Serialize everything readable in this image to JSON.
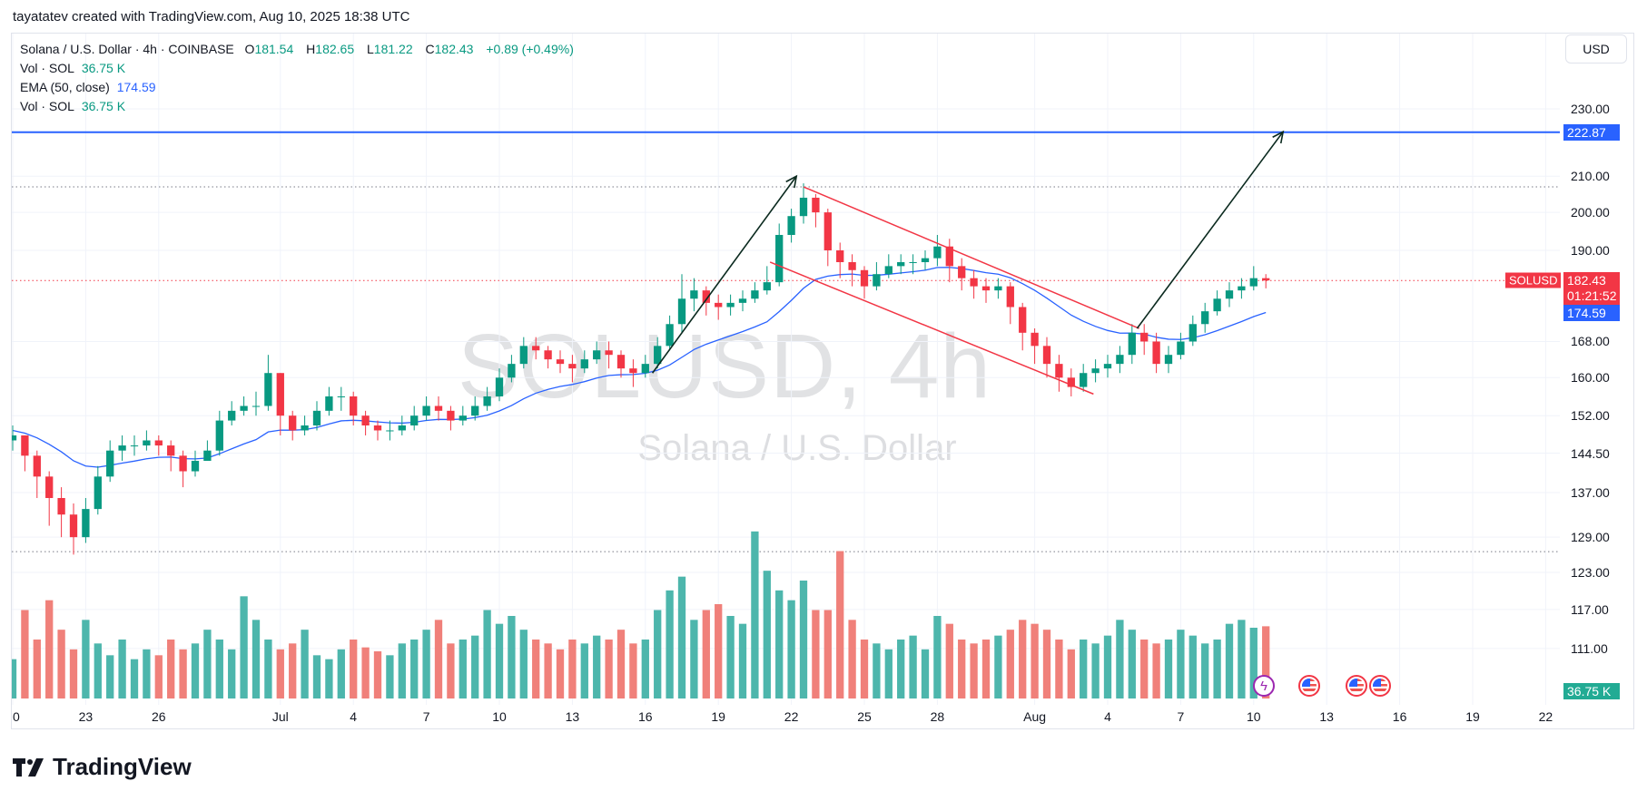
{
  "credit": "tayatatev created with TradingView.com, Aug 10, 2025 18:38 UTC",
  "legend": {
    "symbol": "Solana / U.S. Dollar · 4h · COINBASE",
    "o_label": "O",
    "o": "181.54",
    "h_label": "H",
    "h": "182.65",
    "l_label": "L",
    "l": "181.22",
    "c_label": "C",
    "c": "182.43",
    "change": "+0.89 (+0.49%)",
    "vol1_label": "Vol · SOL",
    "vol1": "36.75 K",
    "ema_label": "EMA (50, close)",
    "ema": "174.59",
    "vol2_label": "Vol · SOL",
    "vol2": "36.75 K"
  },
  "currency_button": "USD",
  "watermark": {
    "symbol": "SOLUSD, 4h",
    "name": "Solana / U.S. Dollar"
  },
  "price_axis": [
    "230.00",
    "210.00",
    "200.00",
    "190.00",
    "168.00",
    "160.00",
    "152.00",
    "144.50",
    "137.00",
    "129.00",
    "123.00",
    "117.00",
    "111.00"
  ],
  "price_tags": {
    "level": "222.87",
    "symbol": "SOLUSD",
    "last": "182.43",
    "countdown": "01:21:52",
    "ema": "174.59",
    "volume": "36.75 K"
  },
  "time_axis": [
    {
      "label": "20",
      "date": "2025-06-20"
    },
    {
      "label": "23",
      "date": "2025-06-23"
    },
    {
      "label": "26",
      "date": "2025-06-26"
    },
    {
      "label": "Jul",
      "date": "2025-07-01"
    },
    {
      "label": "4",
      "date": "2025-07-04"
    },
    {
      "label": "7",
      "date": "2025-07-07"
    },
    {
      "label": "10",
      "date": "2025-07-10"
    },
    {
      "label": "13",
      "date": "2025-07-13"
    },
    {
      "label": "16",
      "date": "2025-07-16"
    },
    {
      "label": "19",
      "date": "2025-07-19"
    },
    {
      "label": "22",
      "date": "2025-07-22"
    },
    {
      "label": "25",
      "date": "2025-07-25"
    },
    {
      "label": "28",
      "date": "2025-07-28"
    },
    {
      "label": "Aug",
      "date": "2025-08-01"
    },
    {
      "label": "4",
      "date": "2025-08-04"
    },
    {
      "label": "7",
      "date": "2025-08-07"
    },
    {
      "label": "10",
      "date": "2025-08-10"
    },
    {
      "label": "13",
      "date": "2025-08-13"
    },
    {
      "label": "16",
      "date": "2025-08-16"
    },
    {
      "label": "19",
      "date": "2025-08-19"
    },
    {
      "label": "22",
      "date": "2025-08-22"
    }
  ],
  "colors": {
    "up": "#089981",
    "down": "#f23645",
    "vol_up": "#4db6ac",
    "vol_down": "#f0807a",
    "ema": "#2962ff",
    "level": "#2962ff",
    "channel": "#f23645",
    "arrow": "#0b2a1f",
    "grid": "#f0f3fa"
  },
  "chart_data": {
    "type": "candlestick",
    "start": "2025-06-20T00:00:00Z",
    "interval_hours": 12,
    "scale": "log",
    "ylim": [
      104,
      240
    ],
    "close": [
      148,
      144,
      140,
      136,
      133,
      129,
      134,
      140,
      145,
      146,
      146,
      147,
      146,
      144,
      141,
      143,
      145,
      151,
      153,
      154,
      154,
      161,
      152,
      149,
      150,
      153,
      156,
      156,
      152,
      150,
      149,
      149,
      150,
      152,
      154,
      153,
      151,
      152,
      154,
      156,
      160,
      163,
      167,
      166,
      164,
      163,
      162,
      164,
      166,
      165,
      162,
      161,
      163,
      167,
      172,
      178,
      180,
      177,
      176,
      177,
      178,
      180,
      182,
      194,
      199,
      204,
      200,
      190,
      187,
      185,
      181,
      184,
      186,
      187,
      187,
      188,
      191,
      186,
      183,
      181,
      180,
      181,
      176,
      170,
      167,
      163,
      160,
      158,
      161,
      162,
      163,
      165,
      170,
      168,
      163,
      165,
      168,
      172,
      175,
      178,
      180,
      181,
      183,
      182.43
    ],
    "open_first": 147,
    "high": [
      150,
      148,
      145,
      141,
      138,
      135,
      136,
      142,
      147,
      148,
      148,
      149,
      148,
      147,
      145,
      145,
      147,
      153,
      155,
      156,
      157,
      165,
      161,
      153,
      152,
      155,
      158,
      158,
      157,
      153,
      151,
      151,
      152,
      154,
      156,
      156,
      154,
      154,
      156,
      158,
      162,
      165,
      169,
      169,
      167,
      166,
      165,
      166,
      168,
      168,
      166,
      164,
      165,
      169,
      174,
      184,
      183,
      181,
      179,
      179,
      180,
      182,
      186,
      197,
      201,
      208,
      205,
      201,
      192,
      189,
      186,
      187,
      189,
      189,
      189,
      190,
      194,
      193,
      188,
      185,
      183,
      183,
      182,
      177,
      171,
      169,
      165,
      162,
      163,
      164,
      165,
      167,
      172,
      172,
      170,
      167,
      170,
      174,
      177,
      180,
      182,
      183,
      186,
      184
    ],
    "low": [
      145,
      141,
      136,
      131,
      129,
      126,
      128,
      133,
      139,
      143,
      144,
      145,
      144,
      141,
      138,
      140,
      143,
      144,
      150,
      152,
      152,
      153,
      148,
      147,
      148,
      149,
      152,
      153,
      150,
      148,
      147,
      147,
      148,
      149,
      151,
      151,
      149,
      150,
      151,
      153,
      155,
      159,
      162,
      164,
      162,
      161,
      159,
      161,
      163,
      162,
      160,
      158,
      160,
      162,
      166,
      170,
      175,
      174,
      173,
      174,
      175,
      177,
      179,
      181,
      192,
      197,
      196,
      186,
      183,
      181,
      178,
      180,
      183,
      184,
      184,
      185,
      186,
      182,
      180,
      178,
      177,
      178,
      172,
      166,
      163,
      160,
      157,
      156,
      157,
      159,
      160,
      161,
      163,
      165,
      161,
      161,
      164,
      167,
      170,
      174,
      176,
      178,
      180,
      180.5
    ],
    "volume_k": [
      20,
      45,
      30,
      50,
      35,
      25,
      40,
      28,
      22,
      30,
      20,
      25,
      22,
      30,
      25,
      28,
      35,
      30,
      25,
      52,
      40,
      30,
      25,
      28,
      35,
      22,
      20,
      25,
      30,
      26,
      24,
      22,
      28,
      30,
      35,
      40,
      28,
      30,
      32,
      45,
      38,
      42,
      35,
      30,
      28,
      25,
      30,
      28,
      32,
      30,
      35,
      28,
      30,
      45,
      55,
      62,
      40,
      45,
      48,
      42,
      38,
      85,
      65,
      55,
      50,
      60,
      45,
      45,
      75,
      40,
      30,
      28,
      25,
      30,
      32,
      25,
      42,
      38,
      30,
      28,
      30,
      32,
      35,
      40,
      38,
      35,
      30,
      25,
      30,
      28,
      32,
      40,
      35,
      30,
      28,
      30,
      35,
      32,
      28,
      30,
      38,
      40,
      36,
      36.75
    ],
    "ema_period": 50,
    "ema_last": 174.59
  },
  "drawings": {
    "horizontal_level": 222.87,
    "dotted_levels": [
      207,
      126.5
    ],
    "last_price_line": 182.43,
    "channel_upper": [
      {
        "date": "2025-07-22T12:00:00Z",
        "price": 207
      },
      {
        "date": "2025-08-05T07:00:00Z",
        "price": 171
      }
    ],
    "channel_lower": [
      {
        "date": "2025-07-21T03:00:00Z",
        "price": 187
      },
      {
        "date": "2025-08-03T10:00:00Z",
        "price": 156.5
      }
    ],
    "arrow_1": [
      {
        "date": "2025-07-16T07:00:00Z",
        "price": 161
      },
      {
        "date": "2025-07-22T05:00:00Z",
        "price": 210
      }
    ],
    "arrow_2": [
      {
        "date": "2025-08-05T05:00:00Z",
        "price": 171
      },
      {
        "date": "2025-08-11T05:00:00Z",
        "price": 223
      }
    ]
  },
  "events": [
    {
      "type": "lightning-icon",
      "date": "2025-08-10T10:00:00Z"
    },
    {
      "type": "us-flag-icon",
      "date": "2025-08-12T07:00:00Z"
    },
    {
      "type": "us-flag-icon",
      "date": "2025-08-14T05:00:00Z"
    },
    {
      "type": "us-flag-icon",
      "date": "2025-08-15T05:00:00Z"
    }
  ],
  "logo_text": "TradingView"
}
